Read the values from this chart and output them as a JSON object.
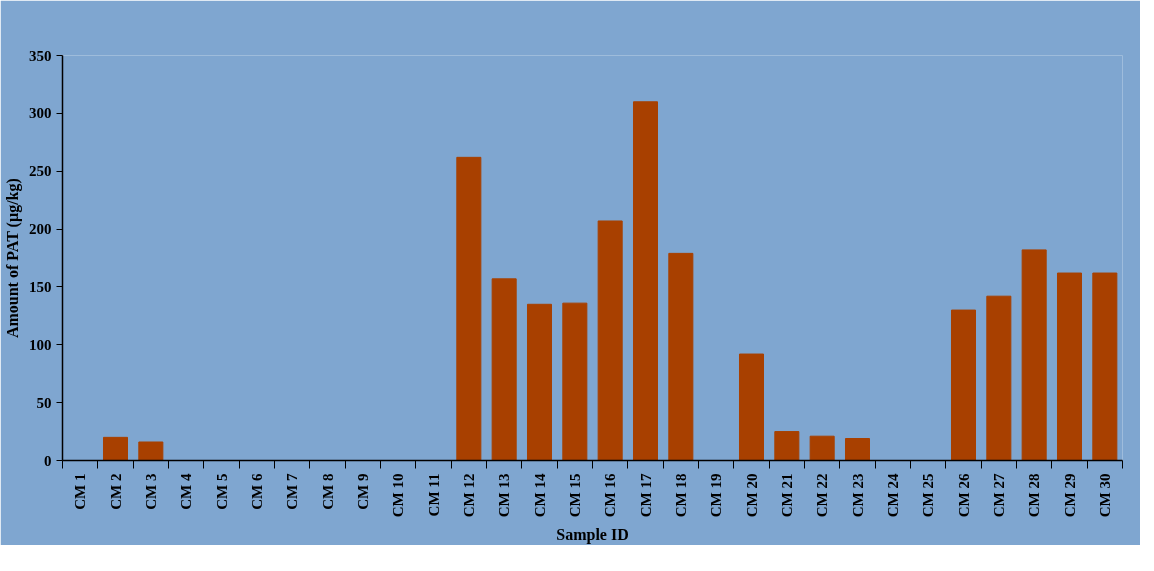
{
  "chart_data": {
    "type": "bar",
    "xlabel": "Sample ID",
    "ylabel": "Amount of PAT (µg/kg)",
    "categories": [
      "CM 1",
      "CM 2",
      "CM 3",
      "CM 4",
      "CM 5",
      "CM 6",
      "CM 7",
      "CM 8",
      "CM 9",
      "CM 10",
      "CM 11",
      "CM 12",
      "CM 13",
      "CM 14",
      "CM 15",
      "CM 16",
      "CM 17",
      "CM 18",
      "CM 19",
      "CM 20",
      "CM 21",
      "CM 22",
      "CM 23",
      "CM 24",
      "CM 25",
      "CM 26",
      "CM 27",
      "CM 28",
      "CM 29",
      "CM 30"
    ],
    "values": [
      0,
      20,
      16,
      0,
      0,
      0,
      0,
      0,
      0,
      0,
      0,
      262,
      157,
      135,
      136,
      207,
      310,
      179,
      0,
      92,
      25,
      21,
      19,
      0,
      0,
      130,
      142,
      182,
      162,
      162
    ],
    "color": "#a84000",
    "ylim": [
      0,
      350
    ],
    "yticks": [
      0,
      50,
      100,
      150,
      200,
      250,
      300,
      350
    ],
    "grid": false
  }
}
